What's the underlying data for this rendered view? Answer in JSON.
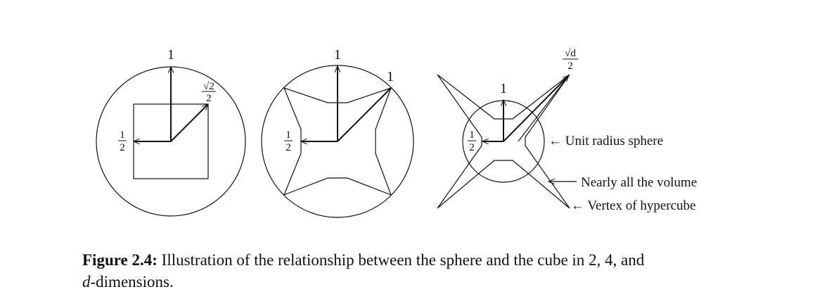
{
  "figure": {
    "panel_2d": {
      "label_one": "1",
      "label_sqrt2_num": "√2",
      "label_sqrt2_den": "2",
      "label_half_num": "1",
      "label_half_den": "2"
    },
    "panel_4d": {
      "label_one_top": "1",
      "label_one_diag": "1",
      "label_half_num": "1",
      "label_half_den": "2"
    },
    "panel_nd": {
      "label_one": "1",
      "label_sqrtd_num": "√d",
      "label_sqrtd_den": "2",
      "label_half_num": "1",
      "label_half_den": "2",
      "annotation_sphere": "← Unit radius sphere",
      "annotation_volume": "Nearly all the volume",
      "annotation_vertex": "← Vertex of hypercube"
    }
  },
  "caption": {
    "figure_number": "Figure 2.4:",
    "text_line1": "Illustration of the relationship between the sphere and the cube in 2, 4, and",
    "text_italic": "d",
    "text_line2": "-dimensions."
  }
}
